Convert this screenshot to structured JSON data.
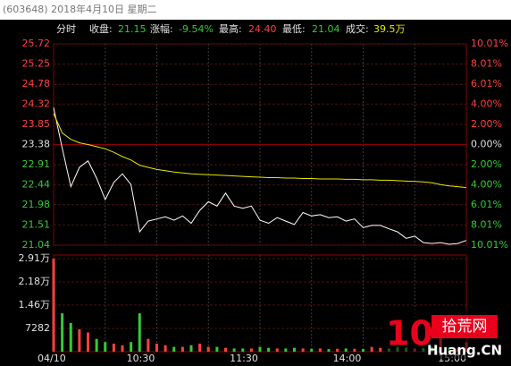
{
  "header": {
    "title": "(603648) 2018年4月10日 星期二"
  },
  "info_bar": {
    "mode": "分时",
    "items": [
      {
        "label": "收盘:",
        "value": "21.15"
      },
      {
        "label": "涨幅:",
        "value": "-9.54%"
      },
      {
        "label": "最高:",
        "value": "24.40"
      },
      {
        "label": "最低:",
        "value": "21.04"
      },
      {
        "label": "成交:",
        "value": "39.5万"
      }
    ]
  },
  "watermark": {
    "number": "10",
    "name": "拾荒网",
    "domain": "Huang.CN"
  },
  "chart_data": [
    {
      "type": "line",
      "categories": [
        "04/10",
        null,
        null,
        null,
        null,
        null,
        null,
        null,
        null,
        null,
        null,
        null,
        "10:30",
        null,
        null,
        null,
        null,
        null,
        null,
        null,
        null,
        null,
        null,
        null,
        "11:30",
        null,
        null,
        null,
        null,
        null,
        null,
        null,
        null,
        null,
        null,
        null,
        "14:00",
        null,
        null,
        null,
        null,
        null,
        null,
        null,
        null,
        null,
        null,
        null,
        "15:00"
      ],
      "series": [
        {
          "color": "#ffffff",
          "values": [
            24.24,
            23.3,
            22.4,
            22.85,
            23.0,
            22.6,
            22.1,
            22.5,
            22.7,
            22.45,
            21.35,
            21.6,
            21.65,
            21.7,
            21.62,
            21.72,
            21.55,
            21.85,
            22.05,
            21.95,
            22.25,
            21.95,
            21.9,
            21.95,
            21.62,
            21.55,
            21.68,
            21.6,
            21.52,
            21.8,
            21.72,
            21.75,
            21.68,
            21.7,
            21.6,
            21.65,
            21.45,
            21.5,
            21.5,
            21.42,
            21.35,
            21.2,
            21.25,
            21.1,
            21.08,
            21.1,
            21.06,
            21.08,
            21.15
          ]
        },
        {
          "color": "#e8e800",
          "values": [
            24.1,
            23.65,
            23.5,
            23.42,
            23.38,
            23.33,
            23.28,
            23.2,
            23.1,
            23.02,
            22.9,
            22.85,
            22.8,
            22.77,
            22.74,
            22.72,
            22.7,
            22.69,
            22.68,
            22.67,
            22.66,
            22.65,
            22.64,
            22.63,
            22.62,
            22.61,
            22.61,
            22.6,
            22.6,
            22.59,
            22.59,
            22.58,
            22.58,
            22.58,
            22.57,
            22.57,
            22.56,
            22.56,
            22.55,
            22.55,
            22.54,
            22.53,
            22.52,
            22.51,
            22.49,
            22.45,
            22.42,
            22.4,
            22.38
          ]
        }
      ],
      "ylim": [
        21.04,
        25.72
      ],
      "yticks": [
        25.72,
        25.25,
        24.78,
        24.32,
        23.85,
        23.38,
        22.91,
        22.44,
        21.98,
        21.51,
        21.04
      ],
      "y2lim": [
        -10.01,
        10.01
      ],
      "y2ticks": [
        {
          "value": 10.01,
          "label": "10.01%"
        },
        {
          "value": 8.01,
          "label": "8.01%"
        },
        {
          "value": 6.01,
          "label": "6.01%"
        },
        {
          "value": 4.0,
          "label": "4.00%"
        },
        {
          "value": 2.0,
          "label": "2.00%"
        },
        {
          "value": 0,
          "label": "0.00%"
        },
        {
          "value": -2.0,
          "label": "2.00%"
        },
        {
          "value": -4.0,
          "label": "4.00%"
        },
        {
          "value": -6.01,
          "label": "6.01%"
        },
        {
          "value": -8.01,
          "label": "8.01%"
        },
        {
          "value": -10.01,
          "label": "10.01%"
        }
      ],
      "grid": true
    },
    {
      "type": "bar",
      "values": [
        29100,
        12000,
        9000,
        7000,
        6000,
        4000,
        3000,
        2500,
        2000,
        3000,
        12000,
        4000,
        2500,
        2000,
        1500,
        1500,
        2000,
        2500,
        1500,
        1500,
        1200,
        1000,
        1000,
        1000,
        1500,
        1200,
        1000,
        1000,
        1200,
        1000,
        900,
        1000,
        800,
        900,
        1000,
        900,
        800,
        1500,
        1200,
        1000,
        1500,
        1300,
        1000,
        1200,
        1500,
        6000,
        1200,
        1000,
        3000
      ],
      "ylim": [
        0,
        29100
      ],
      "yticks": [
        {
          "value": 29100,
          "label": "2.91万"
        },
        {
          "value": 21800,
          "label": "2.18万"
        },
        {
          "value": 14600,
          "label": "1.46万"
        },
        7282
      ],
      "grid": true
    }
  ]
}
